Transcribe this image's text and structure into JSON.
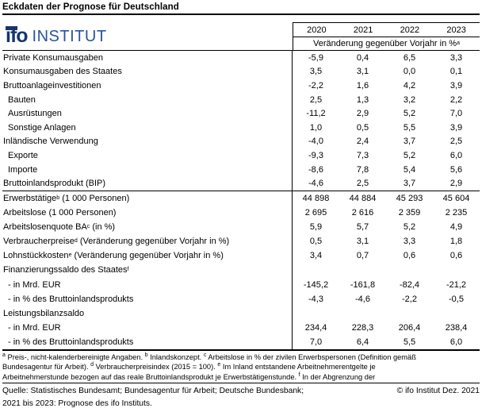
{
  "title": "Eckdaten der Prognose für Deutschland",
  "logo": {
    "name": "ifo-institut-logo",
    "ifo": "ifo",
    "institut": "INSTITUT",
    "dark_blue": "#16366b",
    "light_blue": "#2a549c"
  },
  "header": {
    "years": [
      "2020",
      "2021",
      "2022",
      "2023"
    ],
    "unit_label": "Veränderung gegenüber Vorjahr in %",
    "unit_sup": "a"
  },
  "rows_top": [
    {
      "label": "Private Konsumausgaben",
      "values": [
        "-5,9",
        "0,4",
        "6,5",
        "3,3"
      ]
    },
    {
      "label": "Konsumausgaben des Staates",
      "values": [
        "3,5",
        "3,1",
        "0,0",
        "0,1"
      ]
    },
    {
      "label": "Bruttoanlageinvestitionen",
      "values": [
        "-2,2",
        "1,6",
        "4,2",
        "3,9"
      ]
    },
    {
      "label": "Bauten",
      "indent": 1,
      "values": [
        "2,5",
        "1,3",
        "3,2",
        "2,2"
      ]
    },
    {
      "label": "Ausrüstungen",
      "indent": 1,
      "values": [
        "-11,2",
        "2,9",
        "5,2",
        "7,0"
      ]
    },
    {
      "label": "Sonstige Anlagen",
      "indent": 1,
      "values": [
        "1,0",
        "0,5",
        "5,5",
        "3,9"
      ]
    },
    {
      "label": "Inländische Verwendung",
      "values": [
        "-4,0",
        "2,4",
        "3,7",
        "2,5"
      ]
    },
    {
      "label": "Exporte",
      "indent": 1,
      "values": [
        "-9,3",
        "7,3",
        "5,2",
        "6,0"
      ]
    },
    {
      "label": "Importe",
      "indent": 1,
      "values": [
        "-8,6",
        "7,8",
        "5,4",
        "5,6"
      ]
    },
    {
      "label": "Bruttoinlandsprodukt (BIP)",
      "values": [
        "-4,6",
        "2,5",
        "3,7",
        "2,9"
      ]
    }
  ],
  "rows_bottom": [
    {
      "label": "Erwerbstätige",
      "sup": "b",
      "label2": " (1 000 Personen)",
      "values": [
        "44 898",
        "44 884",
        "45 293",
        "45 604"
      ]
    },
    {
      "label": "Arbeitslose (1 000 Personen)",
      "values": [
        "2 695",
        "2 616",
        "2 359",
        "2 235"
      ]
    },
    {
      "label": "Arbeitslosenquote BA",
      "sup": "c",
      "label2": " (in %)",
      "values": [
        "5,9",
        "5,7",
        "5,2",
        "4,9"
      ]
    },
    {
      "label": "Verbraucherpreise",
      "sup": "d",
      "label2": " (Veränderung gegenüber Vorjahr in %)",
      "values": [
        "0,5",
        "3,1",
        "3,3",
        "1,8"
      ]
    },
    {
      "label": "Lohnstückkosten",
      "sup": "e",
      "label2": " (Veränderung gegenüber Vorjahr in %)",
      "values": [
        "3,4",
        "0,7",
        "0,6",
        "0,6"
      ]
    },
    {
      "label": "Finanzierungssaldo des Staates",
      "sup": "f",
      "values": [
        "",
        "",
        "",
        ""
      ]
    },
    {
      "label": "- in Mrd. EUR",
      "indent": 1,
      "values": [
        "-145,2",
        "-161,8",
        "-82,4",
        "-21,2"
      ]
    },
    {
      "label": "- in % des Bruttoinlandsprodukts",
      "indent": 1,
      "values": [
        "-4,3",
        "-4,6",
        "-2,2",
        "-0,5"
      ]
    },
    {
      "label": "Leistungsbilanzsaldo",
      "values": [
        "",
        "",
        "",
        ""
      ]
    },
    {
      "label": "- in Mrd. EUR",
      "indent": 1,
      "values": [
        "234,4",
        "228,3",
        "206,4",
        "238,4"
      ]
    },
    {
      "label": "- in % des Bruttoinlandsprodukts",
      "indent": 1,
      "values": [
        "7,0",
        "6,4",
        "5,5",
        "6,0"
      ]
    }
  ],
  "footnotes": [
    [
      {
        "s": "a"
      },
      {
        "t": " Preis-, nicht-kalenderbereinigte Angaben. "
      },
      {
        "s": "b"
      },
      {
        "t": " Inlandskonzept. "
      },
      {
        "s": "c"
      },
      {
        "t": " Arbeitslose in % der zivilen Erwerbspersonen (Definition gemäß"
      }
    ],
    [
      {
        "t": "Bundesagentur für Arbeit). "
      },
      {
        "s": "d"
      },
      {
        "t": " Verbraucherpreisindex (2015 = 100). "
      },
      {
        "s": "e"
      },
      {
        "t": " Im Inland entstandene Arbeitnehmerentgelte je"
      }
    ],
    [
      {
        "t": "Arbeitnehmerstunde bezogen auf das reale Bruttoinlandsprodukt je Erwerbstätigenstunde. "
      },
      {
        "s": "f"
      },
      {
        "t": " In der Abgrenzung der"
      }
    ]
  ],
  "source": {
    "line1_left": "Quelle: Statistisches Bundesamt; Bundesagentur für Arbeit; Deutsche Bundesbank;",
    "line1_right": "© ifo Institut Dez. 2021",
    "line2": "2021 bis 2023: Prognose des ifo Instituts."
  }
}
